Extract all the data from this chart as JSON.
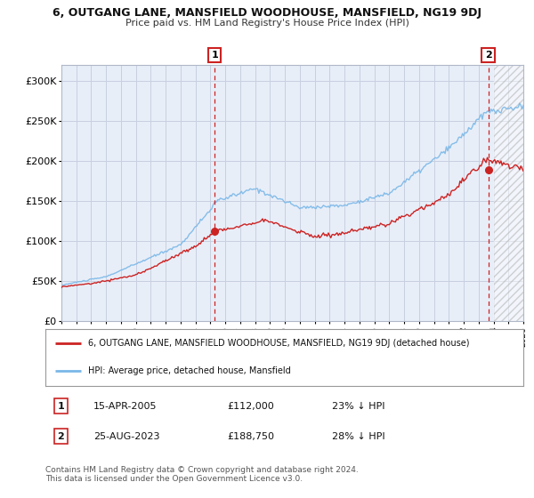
{
  "title1": "6, OUTGANG LANE, MANSFIELD WOODHOUSE, MANSFIELD, NG19 9DJ",
  "title2": "Price paid vs. HM Land Registry's House Price Index (HPI)",
  "bg_color": "#ffffff",
  "chart_bg": "#e8eef8",
  "grid_color": "#c8d0e0",
  "hpi_color": "#7ab8e8",
  "price_color": "#cc2222",
  "dashed_color": "#cc2222",
  "ylim": [
    0,
    320000
  ],
  "yticks": [
    0,
    50000,
    100000,
    150000,
    200000,
    250000,
    300000
  ],
  "ytick_labels": [
    "£0",
    "£50K",
    "£100K",
    "£150K",
    "£200K",
    "£250K",
    "£300K"
  ],
  "xstart_year": 1995,
  "xend_year": 2026,
  "sale1_year": 2005.29,
  "sale1_price": 112000,
  "sale2_year": 2023.65,
  "sale2_price": 188750,
  "annotation1": {
    "label": "1",
    "date": "15-APR-2005",
    "price": "£112,000",
    "hpi": "23% ↓ HPI"
  },
  "annotation2": {
    "label": "2",
    "date": "25-AUG-2023",
    "price": "£188,750",
    "hpi": "28% ↓ HPI"
  },
  "legend_line1": "6, OUTGANG LANE, MANSFIELD WOODHOUSE, MANSFIELD, NG19 9DJ (detached house)",
  "legend_line2": "HPI: Average price, detached house, Mansfield",
  "footer1": "Contains HM Land Registry data © Crown copyright and database right 2024.",
  "footer2": "This data is licensed under the Open Government Licence v3.0."
}
